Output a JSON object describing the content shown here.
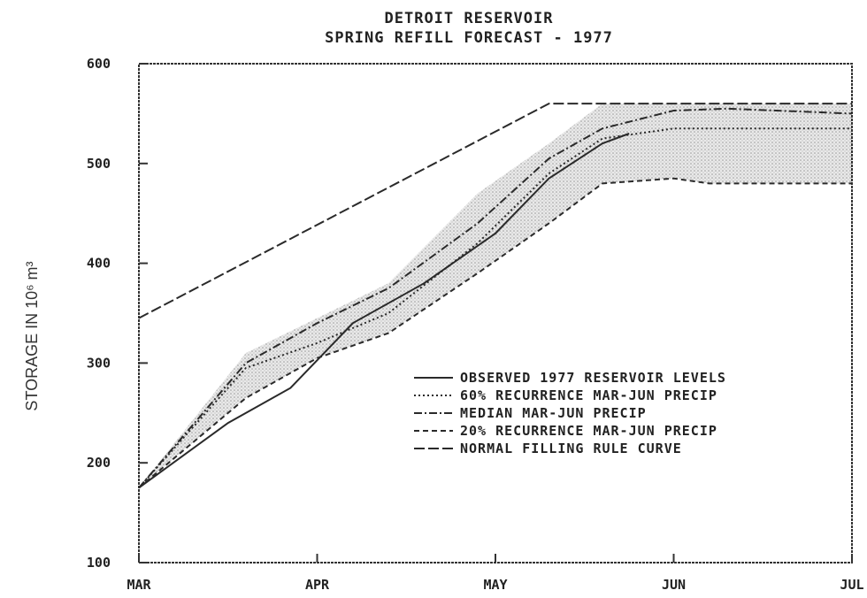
{
  "chart_data": {
    "type": "line",
    "title_line1": "DETROIT RESERVOIR",
    "title_line2": "SPRING REFILL FORECAST - 1977",
    "ylabel": "STORAGE IN 10⁶ m³",
    "ylim": [
      100,
      600
    ],
    "yticks": [
      "100",
      "200",
      "300",
      "400",
      "500",
      "600"
    ],
    "xlim": [
      0,
      4
    ],
    "xticks": [
      "MAR",
      "APR",
      "MAY",
      "JUN",
      "JUL"
    ],
    "legend_position": "center-right",
    "series": [
      {
        "name": "OBSERVED 1977 RESERVOIR LEVELS",
        "style": "solid",
        "x": [
          0,
          0.5,
          0.85,
          1.2,
          1.6,
          2.0,
          2.3,
          2.6,
          2.75
        ],
        "y": [
          175,
          240,
          275,
          340,
          380,
          430,
          485,
          520,
          530
        ]
      },
      {
        "name": "60% RECURRENCE MAR-JUN PRECIP",
        "style": "dotted",
        "x": [
          0,
          0.6,
          1.0,
          1.4,
          1.9,
          2.3,
          2.6,
          3.0,
          3.3,
          4.0
        ],
        "y": [
          175,
          295,
          320,
          350,
          420,
          490,
          525,
          535,
          535,
          535
        ]
      },
      {
        "name": "MEDIAN MAR-JUN PRECIP",
        "style": "dash-dot",
        "x": [
          0,
          0.6,
          1.0,
          1.4,
          1.9,
          2.3,
          2.6,
          3.0,
          3.3,
          4.0
        ],
        "y": [
          175,
          300,
          340,
          375,
          440,
          505,
          535,
          553,
          555,
          550
        ]
      },
      {
        "name": "20% RECURRENCE MAR-JUN PRECIP",
        "style": "dashed",
        "x": [
          0,
          0.6,
          1.0,
          1.4,
          1.9,
          2.3,
          2.6,
          3.0,
          3.2,
          4.0
        ],
        "y": [
          175,
          265,
          305,
          330,
          390,
          440,
          480,
          485,
          480,
          480
        ]
      },
      {
        "name": "NORMAL FILLING RULE CURVE",
        "style": "long-dash",
        "x": [
          0,
          2.3,
          4.0
        ],
        "y": [
          345,
          560,
          560
        ]
      }
    ],
    "band": {
      "upper_x": [
        0,
        0.6,
        1.0,
        1.4,
        1.9,
        2.3,
        2.6,
        3.0,
        4.0
      ],
      "upper_y": [
        175,
        310,
        345,
        380,
        470,
        520,
        560,
        560,
        560
      ],
      "lower_x": [
        0,
        0.6,
        1.0,
        1.4,
        1.9,
        2.3,
        2.6,
        3.0,
        3.2,
        4.0
      ],
      "lower_y": [
        175,
        265,
        305,
        330,
        390,
        440,
        480,
        485,
        480,
        480
      ]
    }
  }
}
